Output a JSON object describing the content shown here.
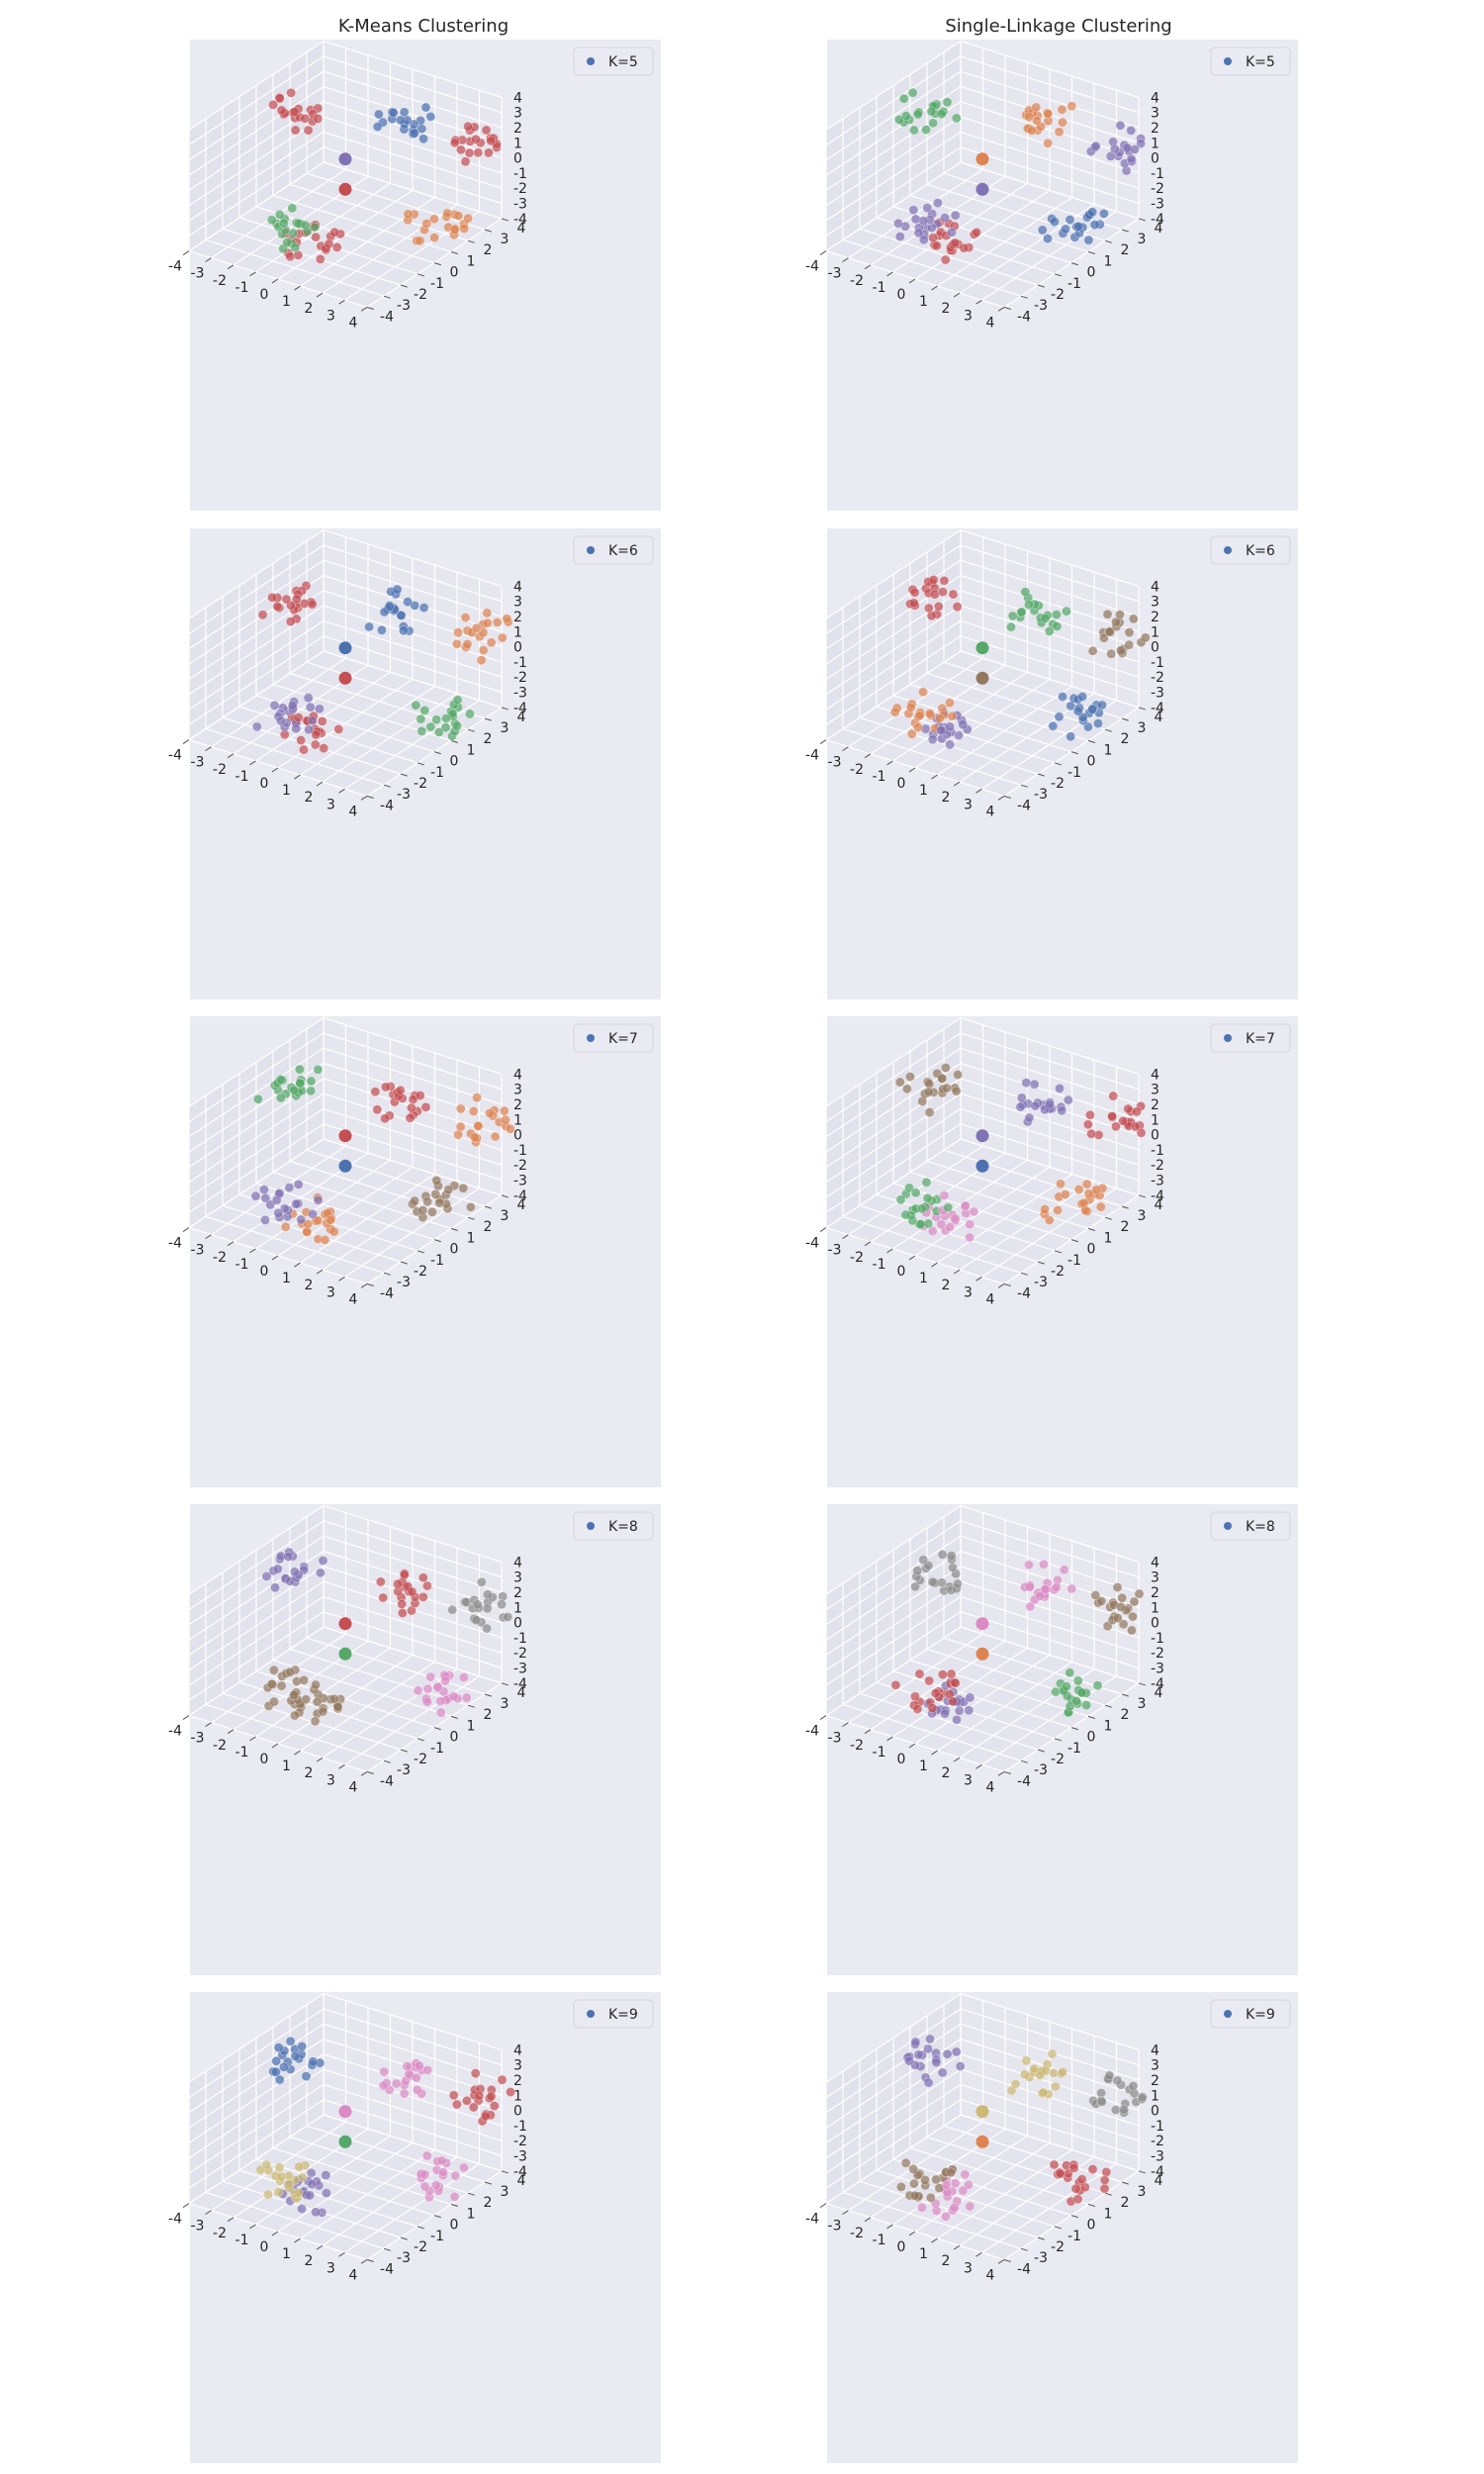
{
  "figure": {
    "column_titles": [
      "K-Means Clustering",
      "Single-Linkage Clustering"
    ]
  },
  "axes": {
    "x_ticks": [
      "-4",
      "-3",
      "-2",
      "-1",
      "0",
      "1",
      "2",
      "3",
      "4"
    ],
    "y_ticks": [
      "-4",
      "-3",
      "-2",
      "-1",
      "0",
      "1",
      "2",
      "3",
      "4"
    ],
    "z_ticks": [
      "-4",
      "-3",
      "-2",
      "-1",
      "0",
      "1",
      "2",
      "3",
      "4"
    ]
  },
  "colors": {
    "panel_bg": "#eaeaf2",
    "pane_left": "#e2e2ec",
    "pane_right": "#e6e6ef",
    "pane_floor": "#e4e4ee",
    "grid": "#ffffff",
    "palette": [
      "#4c72b0",
      "#dd8452",
      "#55a868",
      "#c44e52",
      "#8172b3",
      "#937860",
      "#da8bc3",
      "#8c8c8c",
      "#ccb974"
    ]
  },
  "chart_data": [
    {
      "type": "scatter",
      "method": "K-Means",
      "legend": "K=5",
      "clusters": [
        {
          "center": [
            -3.5,
            1.5,
            1.5
          ],
          "color": 3
        },
        {
          "center": [
            1.5,
            1.5,
            3.0
          ],
          "color": 0
        },
        {
          "center": [
            3.5,
            3.5,
            1.0
          ],
          "color": 3
        },
        {
          "center": [
            -1.5,
            -1.5,
            -3.0
          ],
          "color": 2
        },
        {
          "center": [
            0.0,
            -2.0,
            -3.0
          ],
          "color": 3
        },
        {
          "center": [
            3.5,
            1.0,
            -2.5
          ],
          "color": 1
        }
      ],
      "centroid_colors": [
        4,
        3
      ]
    },
    {
      "type": "scatter",
      "method": "Single-Linkage",
      "legend": "K=5",
      "clusters": [
        {
          "center": [
            -3.5,
            1.5,
            1.5
          ],
          "color": 2
        },
        {
          "center": [
            1.5,
            1.5,
            3.0
          ],
          "color": 1
        },
        {
          "center": [
            3.5,
            3.5,
            1.0
          ],
          "color": 4
        },
        {
          "center": [
            -1.5,
            -1.5,
            -3.0
          ],
          "color": 4
        },
        {
          "center": [
            0.0,
            -2.0,
            -3.0
          ],
          "color": 3
        },
        {
          "center": [
            3.5,
            1.0,
            -2.5
          ],
          "color": 0
        }
      ],
      "centroid_colors": [
        1,
        4
      ]
    },
    {
      "type": "scatter",
      "method": "K-Means",
      "legend": "K=6",
      "clusters": [
        {
          "center": [
            -3.5,
            1.5,
            1.5
          ],
          "color": 3
        },
        {
          "center": [
            1.5,
            1.5,
            3.0
          ],
          "color": 0
        },
        {
          "center": [
            3.5,
            3.5,
            1.0
          ],
          "color": 1
        },
        {
          "center": [
            -1.5,
            -1.5,
            -3.0
          ],
          "color": 4
        },
        {
          "center": [
            0.0,
            -2.0,
            -3.0
          ],
          "color": 3
        },
        {
          "center": [
            3.5,
            1.0,
            -2.5
          ],
          "color": 2
        }
      ],
      "centroid_colors": [
        0,
        3
      ]
    },
    {
      "type": "scatter",
      "method": "Single-Linkage",
      "legend": "K=6",
      "clusters": [
        {
          "center": [
            -3.5,
            1.5,
            1.5
          ],
          "color": 3
        },
        {
          "center": [
            1.5,
            1.5,
            3.0
          ],
          "color": 2
        },
        {
          "center": [
            3.5,
            3.5,
            1.0
          ],
          "color": 5
        },
        {
          "center": [
            -1.5,
            -1.5,
            -3.0
          ],
          "color": 1
        },
        {
          "center": [
            0.0,
            -2.0,
            -3.0
          ],
          "color": 4
        },
        {
          "center": [
            3.5,
            1.0,
            -2.5
          ],
          "color": 0
        }
      ],
      "centroid_colors": [
        2,
        5
      ]
    },
    {
      "type": "scatter",
      "method": "K-Means",
      "legend": "K=7",
      "clusters": [
        {
          "center": [
            -3.5,
            1.5,
            1.5
          ],
          "color": 2
        },
        {
          "center": [
            1.5,
            1.5,
            3.0
          ],
          "color": 3
        },
        {
          "center": [
            3.5,
            3.5,
            1.0
          ],
          "color": 1
        },
        {
          "center": [
            -1.5,
            -1.5,
            -3.0
          ],
          "color": 4
        },
        {
          "center": [
            0.0,
            -2.0,
            -3.0
          ],
          "color": 1
        },
        {
          "center": [
            3.5,
            1.0,
            -2.5
          ],
          "color": 5
        }
      ],
      "centroid_colors": [
        3,
        0
      ]
    },
    {
      "type": "scatter",
      "method": "Single-Linkage",
      "legend": "K=7",
      "clusters": [
        {
          "center": [
            -3.5,
            1.5,
            1.5
          ],
          "color": 5
        },
        {
          "center": [
            1.5,
            1.5,
            3.0
          ],
          "color": 4
        },
        {
          "center": [
            3.5,
            3.5,
            1.0
          ],
          "color": 3
        },
        {
          "center": [
            -1.5,
            -1.5,
            -3.0
          ],
          "color": 2
        },
        {
          "center": [
            0.0,
            -2.0,
            -3.0
          ],
          "color": 6
        },
        {
          "center": [
            3.5,
            1.0,
            -2.5
          ],
          "color": 1
        }
      ],
      "centroid_colors": [
        4,
        0
      ]
    },
    {
      "type": "scatter",
      "method": "K-Means",
      "legend": "K=8",
      "clusters": [
        {
          "center": [
            -3.5,
            1.5,
            1.5
          ],
          "color": 4
        },
        {
          "center": [
            1.5,
            1.5,
            3.0
          ],
          "color": 3
        },
        {
          "center": [
            3.5,
            3.5,
            1.0
          ],
          "color": 7
        },
        {
          "center": [
            -1.5,
            -1.5,
            -3.0
          ],
          "color": 5
        },
        {
          "center": [
            0.0,
            -2.0,
            -3.0
          ],
          "color": 5
        },
        {
          "center": [
            3.5,
            1.0,
            -2.5
          ],
          "color": 6
        }
      ],
      "centroid_colors": [
        3,
        2
      ]
    },
    {
      "type": "scatter",
      "method": "Single-Linkage",
      "legend": "K=8",
      "clusters": [
        {
          "center": [
            -3.5,
            1.5,
            1.5
          ],
          "color": 7
        },
        {
          "center": [
            1.5,
            1.5,
            3.0
          ],
          "color": 6
        },
        {
          "center": [
            3.5,
            3.5,
            1.0
          ],
          "color": 5
        },
        {
          "center": [
            -1.5,
            -1.5,
            -3.0
          ],
          "color": 3
        },
        {
          "center": [
            0.0,
            -2.0,
            -3.0
          ],
          "color": 4
        },
        {
          "center": [
            3.5,
            1.0,
            -2.5
          ],
          "color": 2
        }
      ],
      "centroid_colors": [
        6,
        1
      ]
    },
    {
      "type": "scatter",
      "method": "K-Means",
      "legend": "K=9",
      "clusters": [
        {
          "center": [
            -3.5,
            1.5,
            1.5
          ],
          "color": 0
        },
        {
          "center": [
            1.5,
            1.5,
            3.0
          ],
          "color": 6
        },
        {
          "center": [
            3.5,
            3.5,
            1.0
          ],
          "color": 3
        },
        {
          "center": [
            -1.5,
            -1.5,
            -3.0
          ],
          "color": 8
        },
        {
          "center": [
            0.0,
            -2.0,
            -3.0
          ],
          "color": 4
        },
        {
          "center": [
            3.5,
            1.0,
            -2.5
          ],
          "color": 6
        }
      ],
      "centroid_colors": [
        6,
        2
      ]
    },
    {
      "type": "scatter",
      "method": "Single-Linkage",
      "legend": "K=9",
      "clusters": [
        {
          "center": [
            -3.5,
            1.5,
            1.5
          ],
          "color": 4
        },
        {
          "center": [
            1.5,
            1.5,
            3.0
          ],
          "color": 8
        },
        {
          "center": [
            3.5,
            3.5,
            1.0
          ],
          "color": 7
        },
        {
          "center": [
            -1.5,
            -1.5,
            -3.0
          ],
          "color": 5
        },
        {
          "center": [
            0.0,
            -2.0,
            -3.0
          ],
          "color": 6
        },
        {
          "center": [
            3.5,
            1.0,
            -2.5
          ],
          "color": 3
        }
      ],
      "centroid_colors": [
        8,
        1
      ]
    }
  ]
}
